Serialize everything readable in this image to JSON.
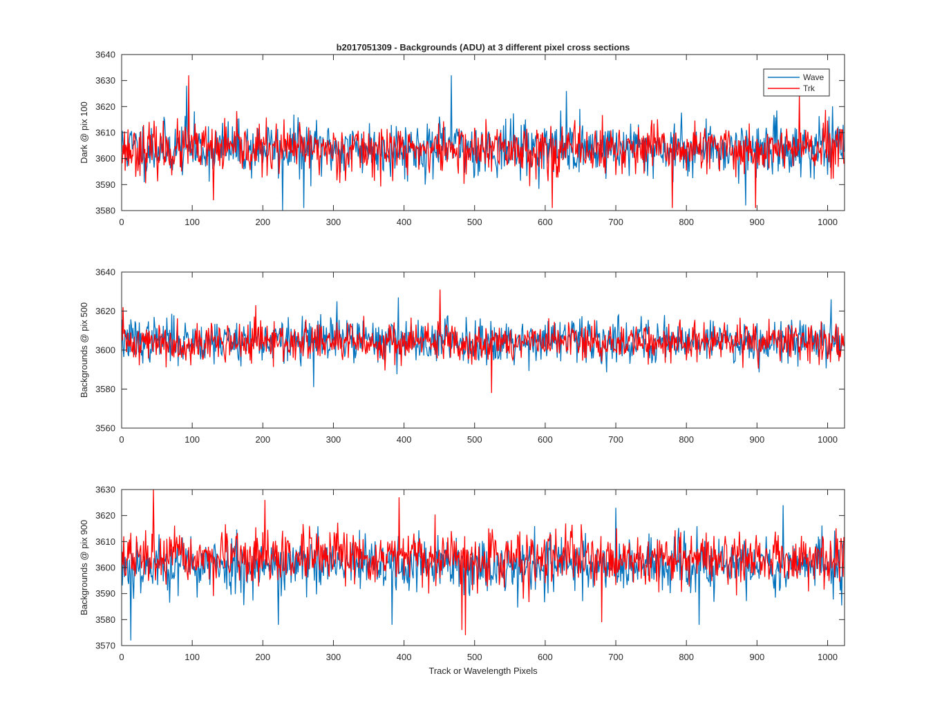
{
  "figure": {
    "title": "b2017051309 - Backgrounds (ADU) at 3 different pixel cross sections",
    "xlabel": "Track or Wavelength Pixels"
  },
  "legend": {
    "entries": [
      {
        "label": "Wave",
        "color": "#0072BD"
      },
      {
        "label": "Trk",
        "color": "#FF0000"
      }
    ]
  },
  "chart_data": [
    {
      "type": "line",
      "title": "b2017051309 - Backgrounds (ADU) at 3 different pixel cross sections",
      "xlabel": "",
      "ylabel": "Dark @ pix 100",
      "xlim": [
        0,
        1024
      ],
      "ylim": [
        3580,
        3640
      ],
      "xticks": [
        0,
        100,
        200,
        300,
        400,
        500,
        600,
        700,
        800,
        900,
        1000
      ],
      "yticks": [
        3580,
        3590,
        3600,
        3610,
        3620,
        3630,
        3640
      ],
      "legend": "top-right",
      "series": [
        {
          "name": "Wave",
          "color": "#0072BD",
          "n": 1024,
          "mean": 3604,
          "noise": 6.5,
          "seed": 11,
          "spikes": [
            [
              92,
              3628
            ],
            [
              467,
              3632
            ],
            [
              228,
              3580
            ],
            [
              258,
              3581
            ],
            [
              630,
              3626
            ],
            [
              884,
              3582
            ]
          ]
        },
        {
          "name": "Trk",
          "color": "#FF0000",
          "n": 1024,
          "mean": 3603.5,
          "noise": 6.0,
          "seed": 23,
          "spikes": [
            [
              95,
              3632
            ],
            [
              960,
              3625
            ],
            [
              898,
              3581
            ],
            [
              610,
              3581
            ],
            [
              780,
              3581
            ],
            [
              130,
              3584
            ]
          ]
        }
      ]
    },
    {
      "type": "line",
      "title": "",
      "xlabel": "",
      "ylabel": "Backgrounds @ pix 500",
      "xlim": [
        0,
        1024
      ],
      "ylim": [
        3560,
        3640
      ],
      "xticks": [
        0,
        100,
        200,
        300,
        400,
        500,
        600,
        700,
        800,
        900,
        1000
      ],
      "yticks": [
        3560,
        3580,
        3600,
        3620,
        3640
      ],
      "series": [
        {
          "name": "Wave",
          "color": "#0072BD",
          "n": 1024,
          "mean": 3605,
          "noise": 7.0,
          "seed": 37,
          "spikes": [
            [
              1005,
              3626
            ],
            [
              272,
              3581
            ],
            [
              392,
              3627
            ],
            [
              305,
              3625
            ]
          ]
        },
        {
          "name": "Trk",
          "color": "#FF0000",
          "n": 1024,
          "mean": 3604,
          "noise": 6.3,
          "seed": 41,
          "spikes": [
            [
              451,
              3631
            ],
            [
              524,
              3578
            ],
            [
              2,
              3622
            ],
            [
              190,
              3623
            ]
          ]
        }
      ]
    },
    {
      "type": "line",
      "title": "",
      "xlabel": "Track or Wavelength Pixels",
      "ylabel": "Backgrounds @ pix 900",
      "xlim": [
        0,
        1024
      ],
      "ylim": [
        3570,
        3630
      ],
      "xticks": [
        0,
        100,
        200,
        300,
        400,
        500,
        600,
        700,
        800,
        900,
        1000
      ],
      "yticks": [
        3570,
        3580,
        3590,
        3600,
        3610,
        3620,
        3630
      ],
      "series": [
        {
          "name": "Wave",
          "color": "#0072BD",
          "n": 1024,
          "mean": 3601,
          "noise": 6.8,
          "seed": 53,
          "spikes": [
            [
              13,
              3572
            ],
            [
              222,
              3578
            ],
            [
              383,
              3578
            ],
            [
              818,
              3578
            ],
            [
              937,
              3624
            ],
            [
              700,
              3623
            ]
          ]
        },
        {
          "name": "Trk",
          "color": "#FF0000",
          "n": 1024,
          "mean": 3603.5,
          "noise": 6.2,
          "seed": 67,
          "spikes": [
            [
              45,
              3630
            ],
            [
              393,
              3627
            ],
            [
              487,
              3574
            ],
            [
              482,
              3576
            ],
            [
              203,
              3626
            ],
            [
              680,
              3579
            ]
          ]
        }
      ]
    }
  ]
}
